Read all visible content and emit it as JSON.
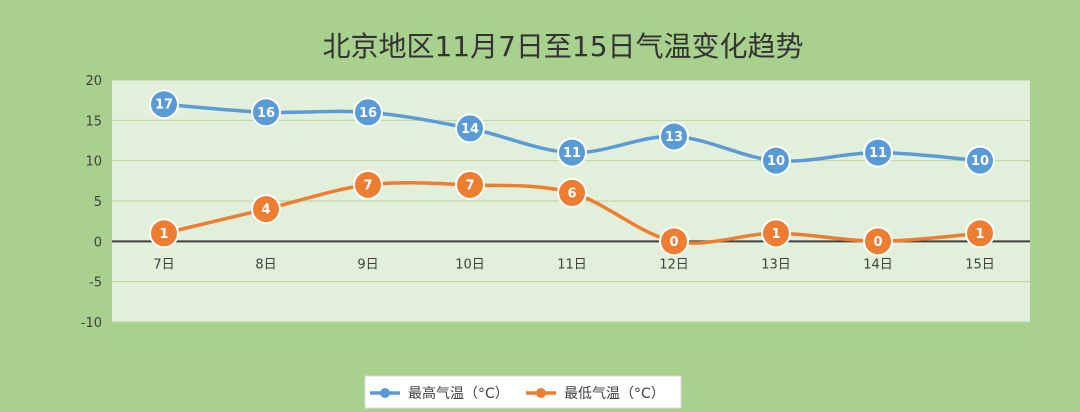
{
  "chart_data": {
    "type": "line",
    "title": "北京地区11月7日至15日气温变化趋势",
    "categories": [
      "7日",
      "8日",
      "9日",
      "10日",
      "11日",
      "12日",
      "13日",
      "14日",
      "15日"
    ],
    "series": [
      {
        "name": "最高气温（°C）",
        "values": [
          17,
          16,
          16,
          14,
          11,
          13,
          10,
          11,
          10
        ],
        "color": "#5b9bd5"
      },
      {
        "name": "最低气温（°C）",
        "values": [
          1,
          4,
          7,
          7,
          6,
          0,
          1,
          0,
          1
        ],
        "color": "#ed7d31"
      }
    ],
    "ylim": [
      -10,
      20
    ],
    "yticks": [
      -10,
      -5,
      0,
      5,
      10,
      15,
      20
    ],
    "grid": true,
    "smooth": true,
    "data_labels": true,
    "legend_position": "bottom",
    "colors": {
      "background": "#a9d18e",
      "plot_area": "#e2efda",
      "gridline": "#b7d6a3",
      "zero_line": "#404040"
    }
  }
}
